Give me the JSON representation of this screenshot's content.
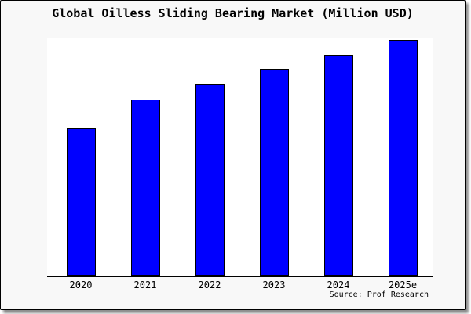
{
  "chart_data": {
    "type": "bar",
    "title": "Global Oilless Sliding Bearing Market (Million USD)",
    "categories": [
      "2020",
      "2021",
      "2022",
      "2023",
      "2024",
      "2025e"
    ],
    "values": [
      188,
      224,
      244,
      263,
      281,
      300
    ],
    "value_scale": "relative-pixel-height (y-axis has no tick labels)",
    "unit": "Million USD",
    "xlabel": "",
    "ylabel": "",
    "grid": false,
    "legend_position": "none",
    "bar_color": "#0000ff",
    "bar_border_color": "#000000",
    "axis_color": "#000000",
    "plot_background": "#ffffff",
    "frame_background": "#f8f8f8"
  },
  "source": {
    "label": "Source: Prof Research"
  }
}
